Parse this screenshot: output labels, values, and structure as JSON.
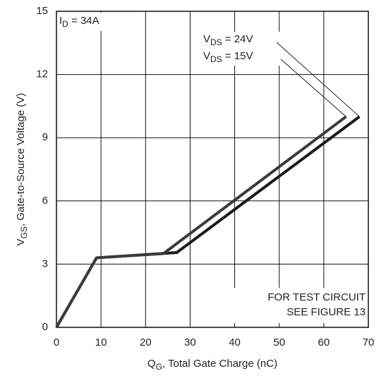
{
  "chart_data": {
    "type": "line",
    "xlabel": {
      "main": "Q",
      "sub": "G",
      "rest": ", Total Gate Charge (nC)"
    },
    "ylabel": {
      "main": "V",
      "sub": "GS",
      "rest": ", Gate-to-Source Voltage (V)"
    },
    "condition": {
      "main": "I",
      "sub": "D",
      "rest": " = 34A"
    },
    "note": [
      "FOR TEST CIRCUIT",
      "SEE FIGURE 13"
    ],
    "xlim": [
      0,
      70
    ],
    "ylim": [
      0,
      15
    ],
    "xticks": [
      0,
      10,
      20,
      30,
      40,
      50,
      60,
      70
    ],
    "yticks": [
      0,
      3,
      6,
      9,
      12,
      15
    ],
    "grid": true,
    "series": [
      {
        "label": {
          "main": "V",
          "sub": "DS",
          "rest": " = 24V"
        },
        "color": "#1a1a1a",
        "x": [
          0,
          9,
          27,
          68
        ],
        "values": [
          0,
          3.3,
          3.55,
          10
        ]
      },
      {
        "label": {
          "main": "V",
          "sub": "DS",
          "rest": " = 15V"
        },
        "color": "#3a3a3a",
        "x": [
          0,
          9,
          24,
          65
        ],
        "values": [
          0,
          3.3,
          3.5,
          10
        ]
      }
    ]
  }
}
